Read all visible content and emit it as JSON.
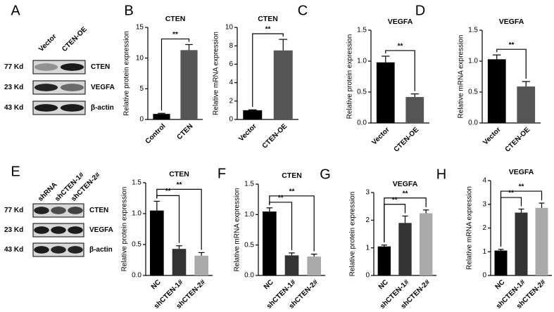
{
  "blots": [
    {
      "letter": "A",
      "lanes": [
        "Vector",
        "CTEN-OE"
      ],
      "rows": [
        {
          "size": "77 Kd",
          "protein": "CTEN"
        },
        {
          "size": "23 Kd",
          "protein": "VEGFA"
        },
        {
          "size": "43 Kd",
          "protein": "β-actin"
        }
      ]
    },
    {
      "letter": "E",
      "lanes": [
        "shRNA",
        "shCTEN-1#",
        "shCTEN-2#"
      ],
      "rows": [
        {
          "size": "77 Kd",
          "protein": "CTEN"
        },
        {
          "size": "23 Kd",
          "protein": "VEGFA"
        },
        {
          "size": "43 Kd",
          "protein": "β-actin"
        }
      ]
    }
  ],
  "chart_data": [
    {
      "type": "bar",
      "title": "CTEN",
      "ylabel": "Relative protein expression",
      "categories": [
        "Control",
        "CTEN"
      ],
      "values": [
        0.9,
        11.3
      ],
      "errors": [
        0.1,
        0.9
      ],
      "colors": [
        "#000000",
        "#555555"
      ],
      "significance": [
        "**"
      ],
      "ylim": [
        0,
        15
      ],
      "yticks": [
        0,
        5,
        10,
        15
      ]
    },
    {
      "type": "bar",
      "label": "B",
      "title": "CTEN",
      "ylabel": "Relative mRNA expression",
      "categories": [
        "Vector",
        "CTEN-OE"
      ],
      "values": [
        1.0,
        7.5
      ],
      "errors": [
        0.05,
        1.2
      ],
      "colors": [
        "#000000",
        "#555555"
      ],
      "significance": [
        "**"
      ],
      "ylim": [
        0,
        10
      ],
      "yticks": [
        0,
        2,
        4,
        6,
        8,
        10
      ]
    },
    {
      "type": "bar",
      "label": "C",
      "title": "VEGFA",
      "ylabel": "Relative protein expression",
      "categories": [
        "Vector",
        "CTEN-OE"
      ],
      "values": [
        0.98,
        0.42
      ],
      "errors": [
        0.1,
        0.05
      ],
      "colors": [
        "#000000",
        "#555555"
      ],
      "significance": [
        "**"
      ],
      "ylim": [
        0,
        1.5
      ],
      "yticks": [
        {
          "value": 0,
          "label": "0.0"
        },
        {
          "value": 0.5,
          "label": "0.5"
        },
        {
          "value": 1,
          "label": "1.0"
        },
        {
          "value": 1.5,
          "label": "1.5"
        }
      ]
    },
    {
      "type": "bar",
      "label": "D",
      "title": "VEGFA",
      "ylabel": "Relative mRNA expression",
      "categories": [
        "Vector",
        "CTEN-OE"
      ],
      "values": [
        1.03,
        0.59
      ],
      "errors": [
        0.07,
        0.08
      ],
      "colors": [
        "#000000",
        "#555555"
      ],
      "significance": [
        "**"
      ],
      "ylim": [
        0,
        1.5
      ],
      "yticks": [
        {
          "value": 0,
          "label": "0.0"
        },
        {
          "value": 0.5,
          "label": "0.5"
        },
        {
          "value": 1,
          "label": "1.0"
        },
        {
          "value": 1.5,
          "label": "1.5"
        }
      ]
    },
    {
      "type": "bar",
      "title": "CTEN",
      "ylabel": "Relative protein expression",
      "categories": [
        "NC",
        "shCTEN-1#",
        "shCTEN-2#"
      ],
      "values": [
        1.05,
        0.43,
        0.32
      ],
      "errors": [
        0.15,
        0.05,
        0.05
      ],
      "colors": [
        "#000000",
        "#333333",
        "#aaaaaa"
      ],
      "significance": [
        "**",
        "**"
      ],
      "ylim": [
        0,
        1.5
      ],
      "yticks": [
        {
          "value": 0,
          "label": "0.0"
        },
        {
          "value": 0.5,
          "label": "0.5"
        },
        {
          "value": 1,
          "label": "1.0"
        },
        {
          "value": 1.5,
          "label": "1.5"
        }
      ]
    },
    {
      "type": "bar",
      "label": "F",
      "title": "CTEN",
      "ylabel": "Relative mRNA expression",
      "categories": [
        "NC",
        "shCTEN-1#",
        "shCTEN-2#"
      ],
      "values": [
        1.05,
        0.33,
        0.31
      ],
      "errors": [
        0.06,
        0.04,
        0.04
      ],
      "colors": [
        "#000000",
        "#333333",
        "#aaaaaa"
      ],
      "significance": [
        "**",
        "**"
      ],
      "ylim": [
        0,
        1.5
      ],
      "yticks": [
        {
          "value": 0,
          "label": "0.0"
        },
        {
          "value": 0.5,
          "label": "0.5"
        },
        {
          "value": 1,
          "label": "1.0"
        },
        {
          "value": 1.5,
          "label": "1.5"
        }
      ]
    },
    {
      "type": "bar",
      "label": "G",
      "title": "VEGFA",
      "ylabel": "Relative protein expression",
      "categories": [
        "NC",
        "shCTEN-1#",
        "shCTEN-2#"
      ],
      "values": [
        1.05,
        1.9,
        2.25
      ],
      "errors": [
        0.05,
        0.25,
        0.12
      ],
      "colors": [
        "#000000",
        "#333333",
        "#aaaaaa"
      ],
      "significance": [
        "**",
        "**"
      ],
      "ylim": [
        0,
        3
      ],
      "yticks": [
        0,
        1,
        2,
        3
      ]
    },
    {
      "type": "bar",
      "label": "H",
      "title": "VEGFA",
      "ylabel": "Relative mRNA expression",
      "categories": [
        "NC",
        "shCTEN-1#",
        "shCTEN-2#"
      ],
      "values": [
        1.05,
        2.65,
        2.85
      ],
      "errors": [
        0.05,
        0.15,
        0.2
      ],
      "colors": [
        "#000000",
        "#333333",
        "#aaaaaa"
      ],
      "significance": [
        "**",
        "**"
      ],
      "ylim": [
        0,
        4
      ],
      "yticks": [
        0,
        1,
        2,
        3,
        4
      ]
    }
  ]
}
